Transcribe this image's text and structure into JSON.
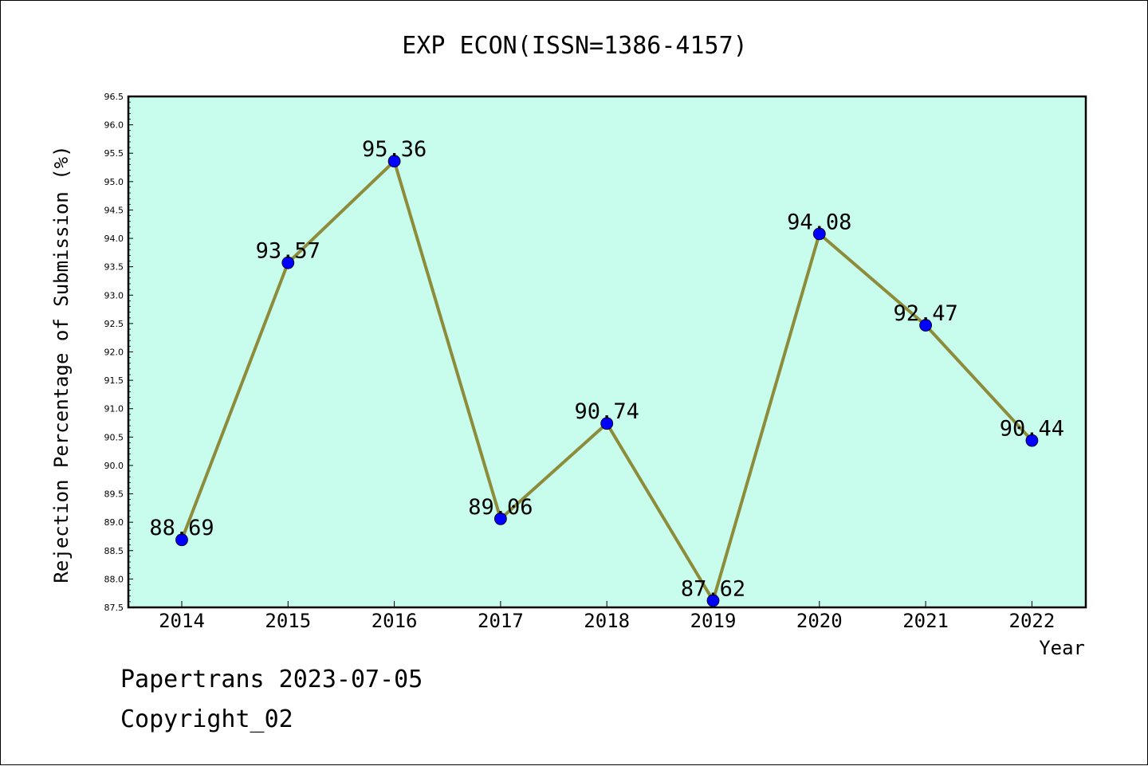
{
  "chart_data": {
    "type": "line",
    "title": "EXP ECON(ISSN=1386-4157)",
    "xlabel": "Year",
    "ylabel": "Rejection Percentage of Submission (%)",
    "categories": [
      "2014",
      "2015",
      "2016",
      "2017",
      "2018",
      "2019",
      "2020",
      "2021",
      "2022"
    ],
    "values": [
      88.69,
      93.57,
      95.36,
      89.06,
      90.74,
      87.62,
      94.08,
      92.47,
      90.44
    ],
    "data_labels": [
      "88.69",
      "93.57",
      "95.36",
      "89.06",
      "90.74",
      "87.62",
      "94.08",
      "92.47",
      "90.44"
    ],
    "ylim": [
      87.5,
      96.5
    ],
    "yticks": [
      "87.5",
      "88.0",
      "88.5",
      "89.0",
      "89.5",
      "90.0",
      "90.5",
      "91.0",
      "91.5",
      "92.0",
      "92.5",
      "93.0",
      "93.5",
      "94.0",
      "94.5",
      "95.0",
      "95.5",
      "96.0",
      "96.5"
    ],
    "grid": false,
    "colors": {
      "plot_background": "#c8fced",
      "line": "#8c8c3a",
      "marker": "#0000ff"
    }
  },
  "footer": {
    "line1": "Papertrans 2023-07-05",
    "line2": "Copyright_02"
  }
}
